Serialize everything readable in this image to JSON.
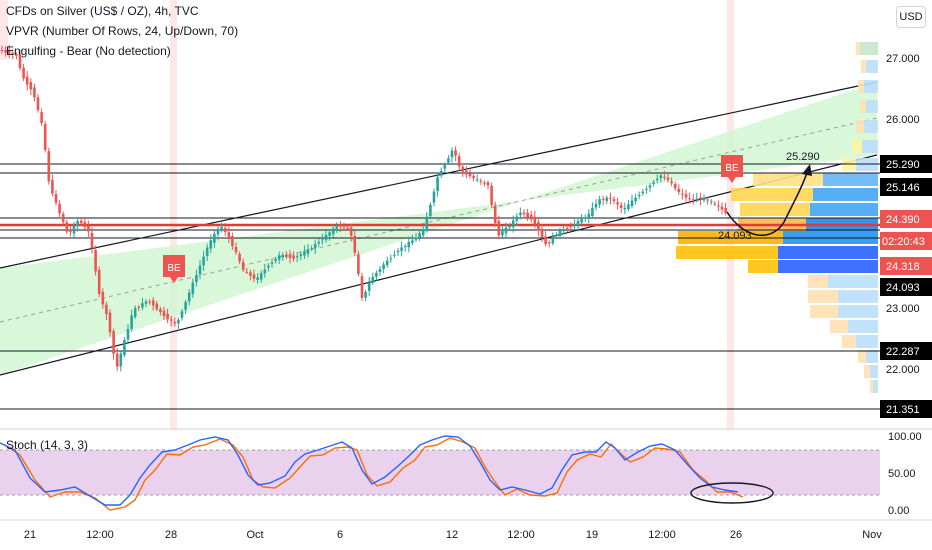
{
  "legend": {
    "symbol": "CFDs on Silver (US$ / OZ), 4h, TVC",
    "vpvr": "VPVR (Number Of Rows, 24, Up/Down, 70)",
    "engulfing": "Engulfing - Bear (No detection)",
    "stoch": "Stoch (14, 3, 3)"
  },
  "currency_button": "USD",
  "price_axis": [
    "27.000",
    "26.000",
    "23.000",
    "22.000"
  ],
  "price_badges": {
    "b25290": "25.290",
    "b25146": "25.146",
    "b24390": "24.390",
    "countdown": "02:20:43",
    "b24318": "24.318",
    "b24093": "24.093",
    "b22287": "22.287",
    "b21351": "21.351"
  },
  "stoch_axis": [
    "100.00",
    "50.00",
    "0.00"
  ],
  "time_axis": [
    "21",
    "12:00",
    "28",
    "Oct",
    "6",
    "12",
    "12:00",
    "19",
    "12:00",
    "26",
    "Nov"
  ],
  "annotations": {
    "target": "25.290",
    "support": "24.093",
    "marker": "BE"
  },
  "colors": {
    "bull": "#26a69a",
    "bear": "#ef5350",
    "stoch_k": "#2962ff",
    "stoch_d": "#ff6d00",
    "channel_fill": "#ccf5cc"
  }
}
